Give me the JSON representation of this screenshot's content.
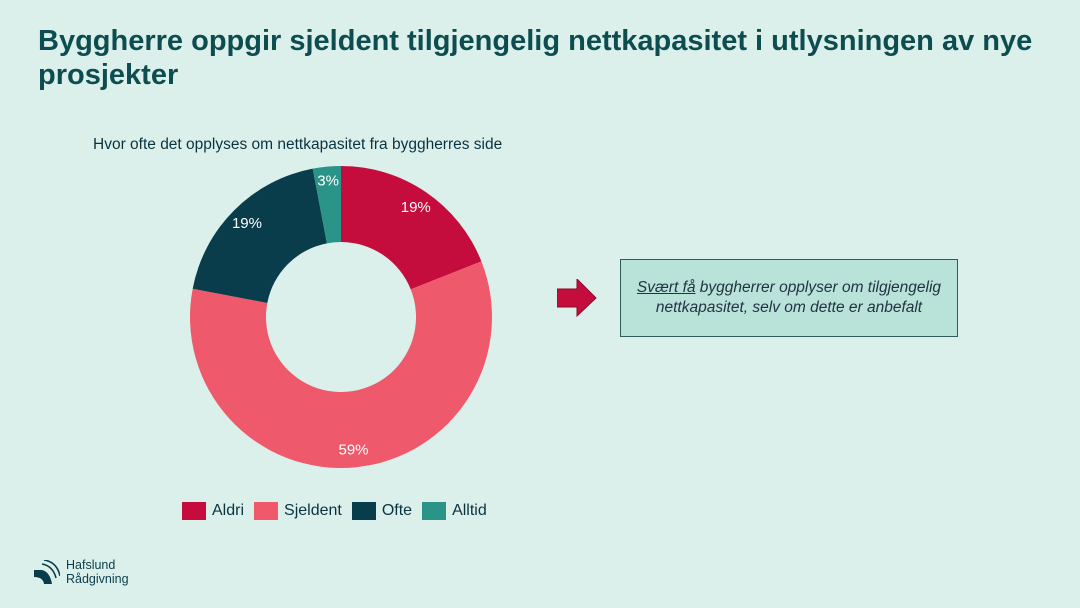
{
  "title": "Byggherre oppgir sjeldent tilgjengelig nettkapasitet i utlysningen av nye prosjekter",
  "callout": {
    "underlined": "Svært få",
    "rest": " byggherrer opplyser om tilgjengelig nettkapasitet, selv om dette er anbefalt"
  },
  "logo": {
    "line1": "Hafslund",
    "line2": "Rådgivning"
  },
  "chart_data": {
    "type": "pie",
    "variant": "donut",
    "title": "Hvor ofte det opplyses om nettkapasitet fra byggherres side",
    "categories": [
      "Aldri",
      "Sjeldent",
      "Ofte",
      "Alltid"
    ],
    "values": [
      19,
      59,
      19,
      3
    ],
    "data_labels": [
      "19%",
      "59%",
      "19%",
      "3%"
    ],
    "colors": [
      "#c40d3c",
      "#ee5a6c",
      "#0a3d4c",
      "#2a9489"
    ],
    "legend_position": "bottom"
  }
}
